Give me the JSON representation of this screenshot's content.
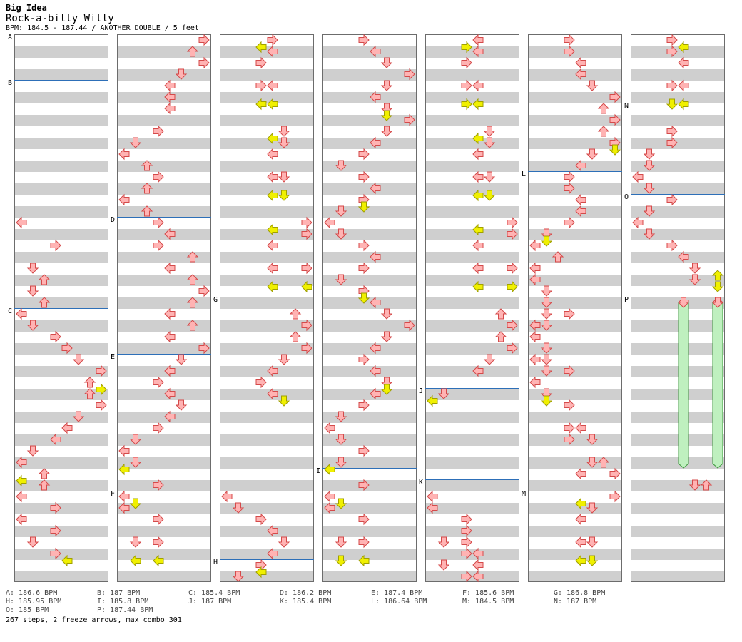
{
  "header": {
    "title": "Big Idea",
    "subtitle": "Rock-a-billy Willy",
    "bpm_line": "BPM: 184.5 - 187.44 / ANOTHER DOUBLE / 5 feet"
  },
  "columns": [
    "col-1",
    "col-2",
    "col-3",
    "col-4",
    "col-5",
    "col-6",
    "col-7"
  ],
  "markers": [
    "A",
    "B",
    "C",
    "D",
    "E",
    "F",
    "G",
    "H",
    "I",
    "J",
    "K",
    "L",
    "M",
    "N",
    "O",
    "P"
  ],
  "bpm_legend": [
    "A: 186.6 BPM",
    "B: 187 BPM",
    "C: 185.4 BPM",
    "D: 186.2 BPM",
    "E: 187.4 BPM",
    "F: 185.6 BPM",
    "G: 186.8 BPM",
    "H: 185.95 BPM",
    "I: 185.8 BPM",
    "J: 187 BPM",
    "K: 185.4 BPM",
    "L: 186.64 BPM",
    "M: 184.5 BPM",
    "N: 187 BPM",
    "O: 185 BPM",
    "P: 187.44 BPM"
  ],
  "footer": "267 steps, 2 freeze arrows, max combo 301",
  "colors": {
    "step": "#ffb3b3",
    "step_stroke": "#d44a4a",
    "off": "#f0f000",
    "off_stroke": "#a0a000",
    "freeze": "#bff0bf",
    "freeze_stroke": "#3a9a3a",
    "marker_line": "#2d6fb8"
  },
  "arrow_directions": [
    "left",
    "down",
    "up",
    "right"
  ],
  "freeze_count": 2
}
